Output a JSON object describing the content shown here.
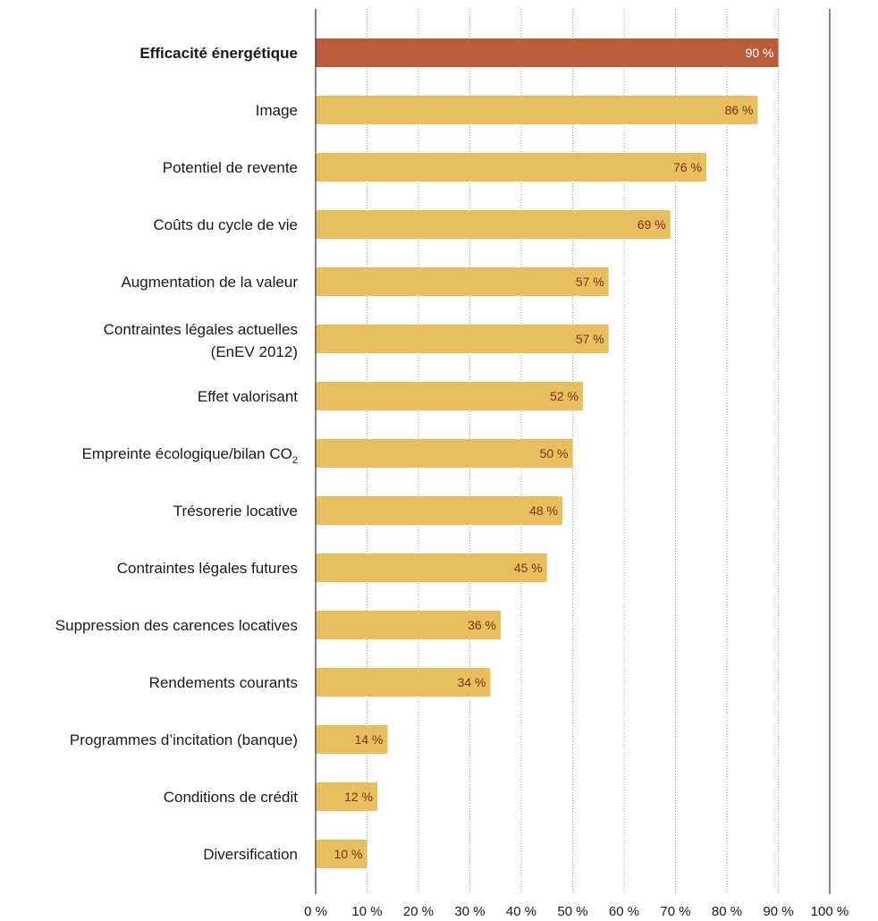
{
  "chart_data": {
    "type": "bar",
    "orientation": "horizontal",
    "categories": [
      "Efficacité énergétique",
      "Image",
      "Potentiel de revente",
      "Coûts du cycle de vie",
      "Augmentation de la valeur",
      "Contraintes légales actuelles (EnEV 2012)",
      "Effet valorisant",
      "Empreinte écologique/bilan CO2",
      "Trésorerie locative",
      "Contraintes légales futures",
      "Suppression des carences locatives",
      "Rendements courants",
      "Programmes d’incitation (banque)",
      "Conditions de crédit",
      "Diversification"
    ],
    "category_lines": [
      [
        "Efficacité énergétique"
      ],
      [
        "Image"
      ],
      [
        "Potentiel de revente"
      ],
      [
        "Coûts du cycle de vie"
      ],
      [
        "Augmentation de la valeur"
      ],
      [
        "Contraintes légales actuelles",
        "(EnEV 2012)"
      ],
      [
        "Effet valorisant"
      ],
      [
        "Empreinte écologique/bilan CO",
        "2"
      ],
      [
        "Trésorerie locative"
      ],
      [
        "Contraintes légales futures"
      ],
      [
        "Suppression des carences locatives"
      ],
      [
        "Rendements courants"
      ],
      [
        "Programmes d’incitation (banque)"
      ],
      [
        "Conditions de crédit"
      ],
      [
        "Diversification"
      ]
    ],
    "values": [
      90,
      86,
      76,
      69,
      57,
      57,
      52,
      50,
      48,
      45,
      36,
      34,
      14,
      12,
      10
    ],
    "value_labels": [
      "90 %",
      "86 %",
      "76 %",
      "69 %",
      "57 %",
      "57 %",
      "52 %",
      "50 %",
      "48 %",
      "45 %",
      "36 %",
      "34 %",
      "14 %",
      "12 %",
      "10 %"
    ],
    "highlighted_index": 0,
    "xlim": [
      0,
      100
    ],
    "xticks": [
      0,
      10,
      20,
      30,
      40,
      50,
      60,
      70,
      80,
      90,
      100
    ],
    "xtick_labels": [
      "0 %",
      "10 %",
      "20 %",
      "30 %",
      "40 %",
      "50 %",
      "60 %",
      "70 %",
      "80 %",
      "90 %",
      "100 %"
    ],
    "grid": "vertical dotted",
    "colors": {
      "bar": "#e6c05f",
      "highlight_bar": "#b85c3c",
      "value_text": "#8b2a1a",
      "highlight_value_text": "#ffffff",
      "axis": "#333333",
      "grid": "#999999"
    }
  }
}
